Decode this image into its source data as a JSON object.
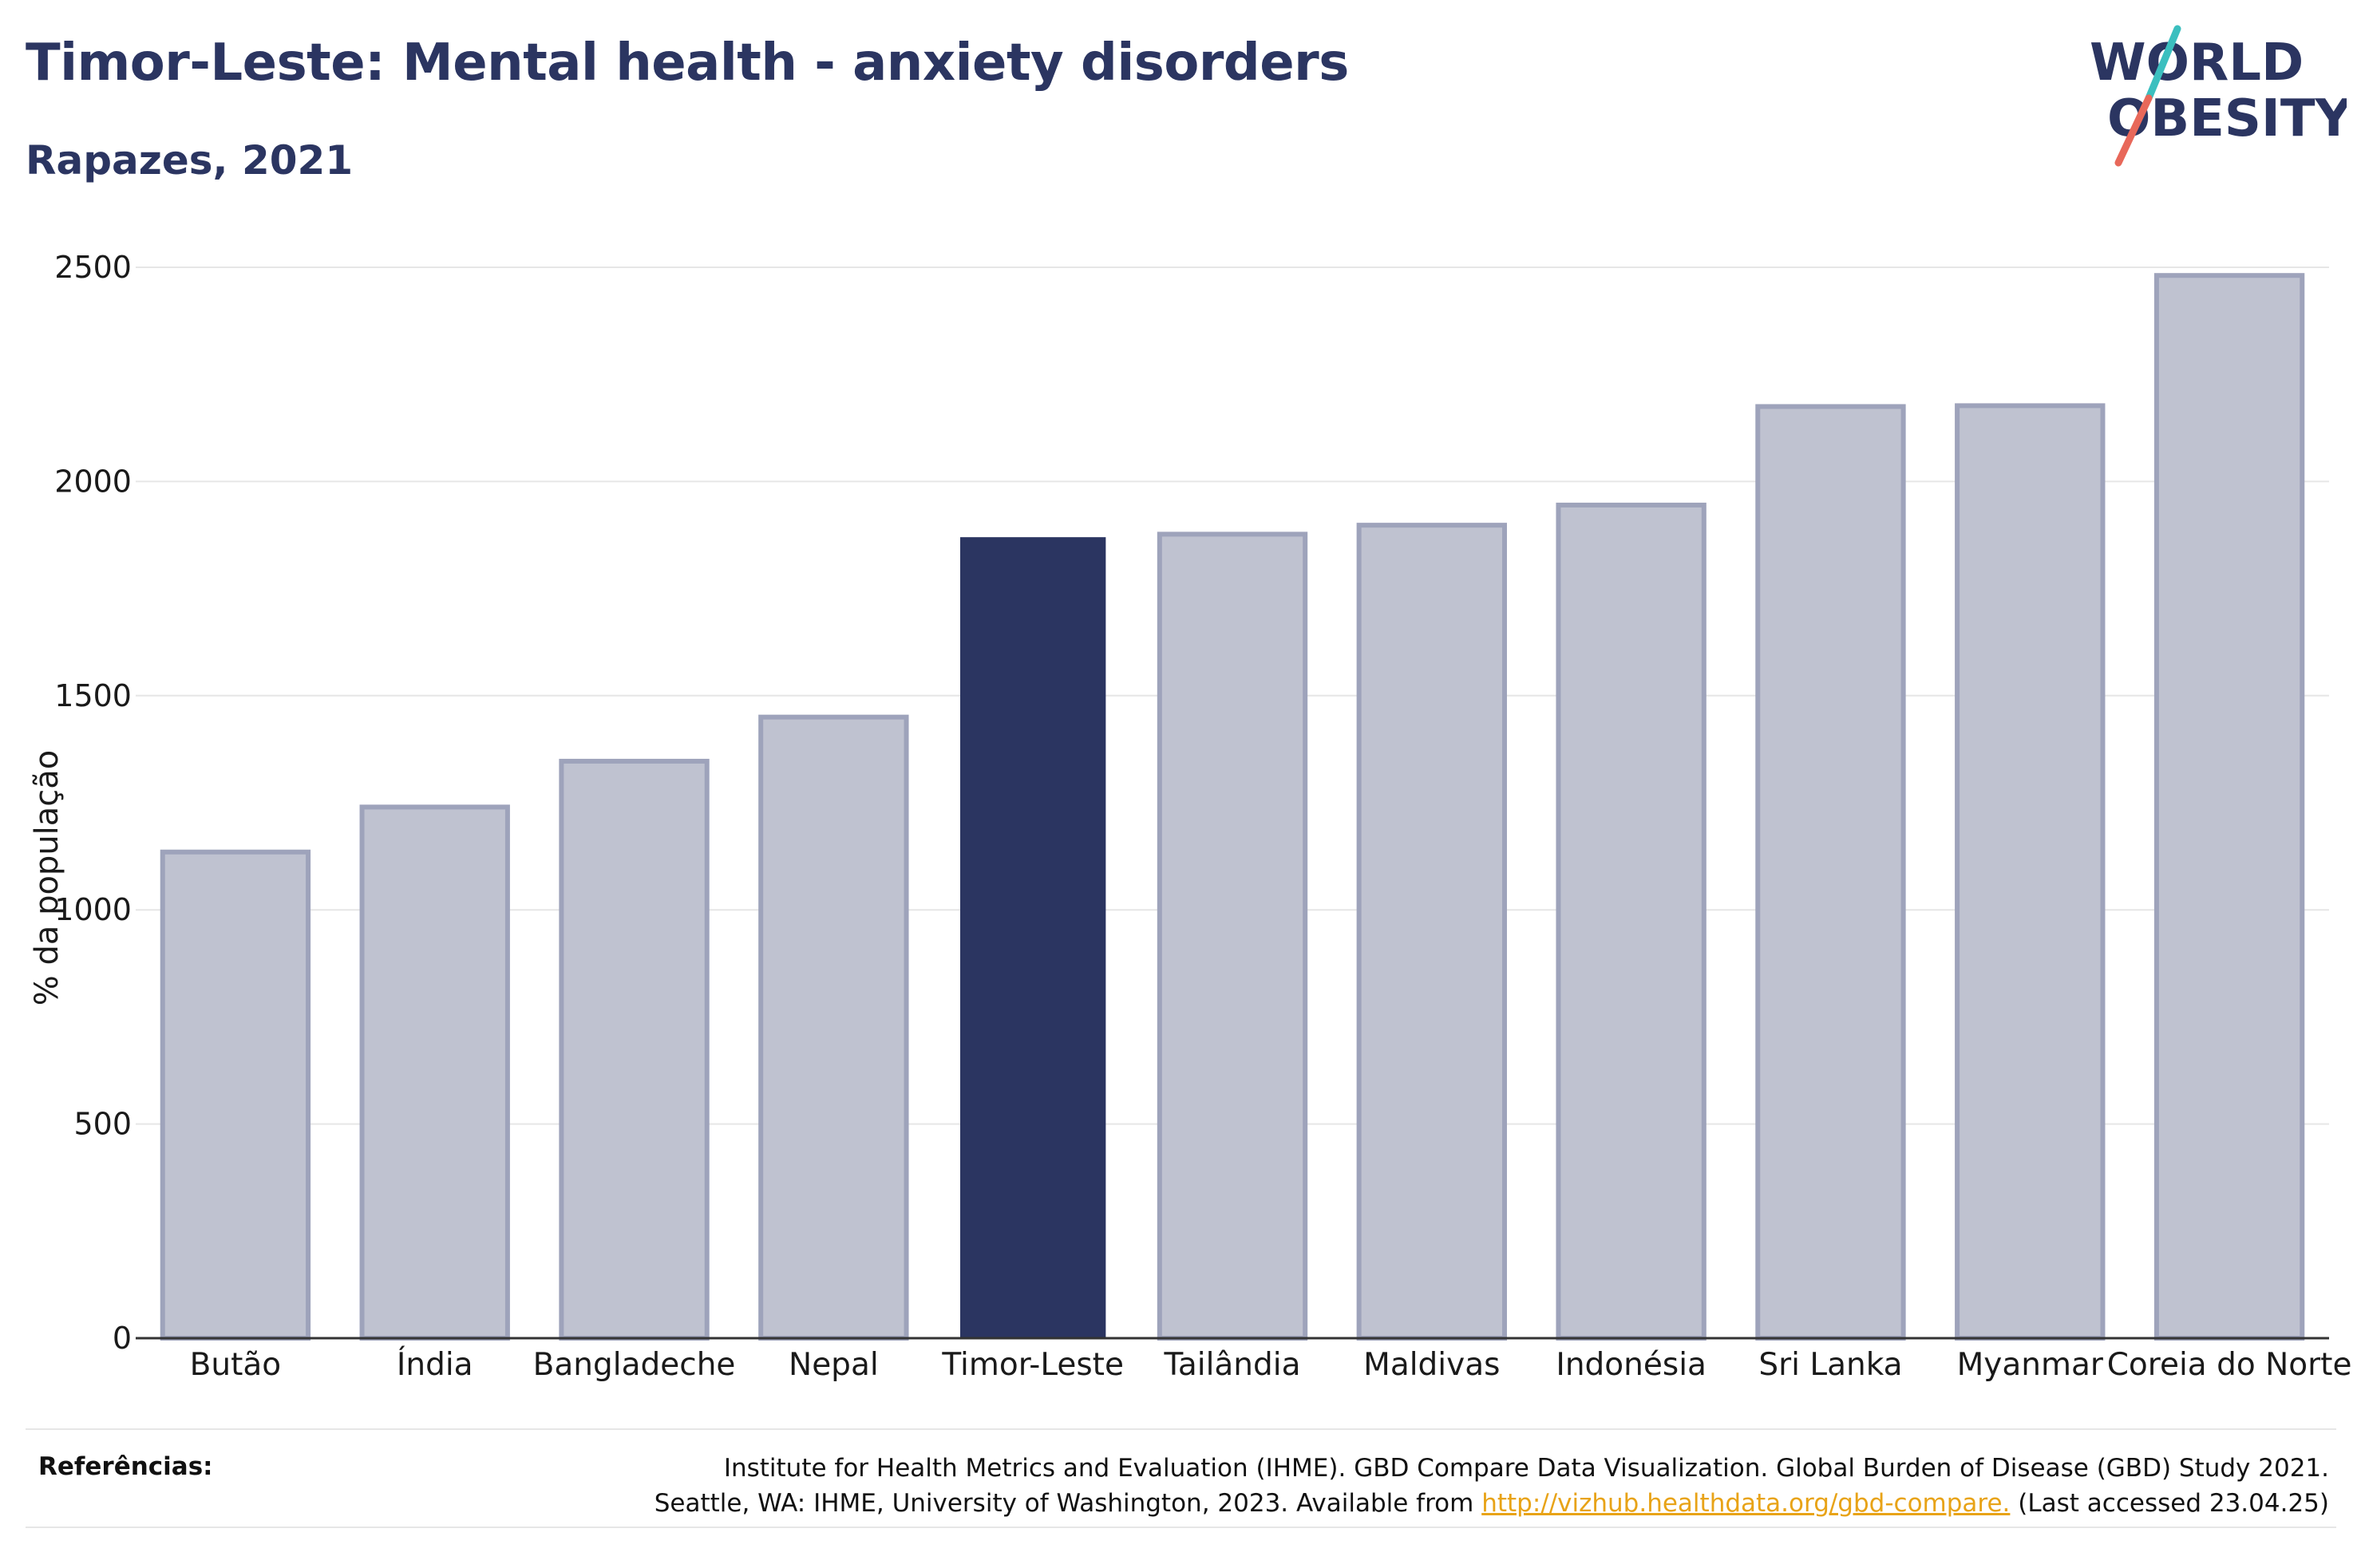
{
  "header": {
    "title": "Timor-Leste: Mental health - anxiety disorders",
    "subtitle": "Rapazes, 2021"
  },
  "logo": {
    "line1": "WORLD",
    "line2": "OBESITY",
    "colors": {
      "text": "#2b3561",
      "slash_top": "#3bbfbf",
      "slash_bottom": "#e8685a"
    }
  },
  "colors": {
    "highlight_bar": "#2b3561",
    "other_bar_fill": "#bfc2d0",
    "other_bar_stroke": "#9ea3bb",
    "grid": "#e6e6e6",
    "axis": "#333333"
  },
  "chart_data": {
    "type": "bar",
    "title": "Timor-Leste: Mental health - anxiety disorders",
    "subtitle": "Rapazes, 2021",
    "xlabel": "",
    "ylabel": "% da população",
    "categories": [
      "Butão",
      "Índia",
      "Bangladeche",
      "Nepal",
      "Timor-Leste",
      "Tailândia",
      "Maldivas",
      "Indonésia",
      "Sri Lanka",
      "Myanmar",
      "Coreia do Norte"
    ],
    "values": [
      1135,
      1240,
      1347,
      1450,
      1870,
      1877,
      1898,
      1945,
      2175,
      2177,
      2481
    ],
    "highlight": "Timor-Leste",
    "ylim": [
      0,
      2500
    ],
    "yticks": [
      0,
      500,
      1000,
      1500,
      2000,
      2500
    ],
    "grid": true,
    "legend": "none"
  },
  "footer": {
    "ref_label": "Referências:",
    "ref_line1": "Institute for Health Metrics and Evaluation (IHME). GBD Compare Data Visualization. Global Burden of Disease (GBD) Study 2021.",
    "ref_line2_pre": "Seattle, WA: IHME, University of Washington, 2023. Available from ",
    "ref_link": "http://vizhub.healthdata.org/gbd-compare.",
    "ref_line2_post": " (Last accessed 23.04.25)"
  }
}
